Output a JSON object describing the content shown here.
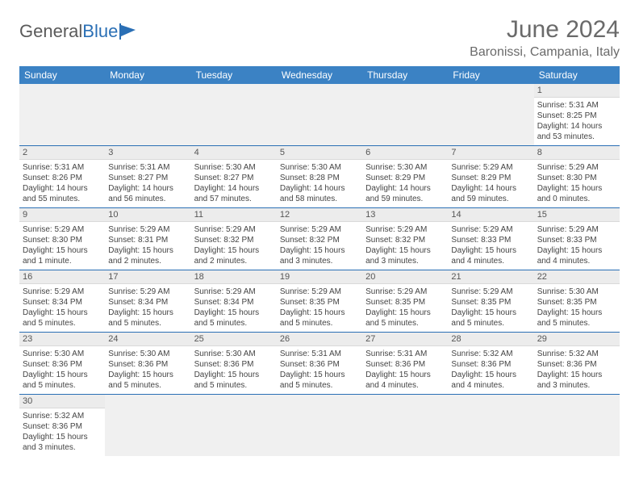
{
  "logo": {
    "text1": "General",
    "text2": "Blue"
  },
  "title": "June 2024",
  "location": "Baronissi, Campania, Italy",
  "colors": {
    "header_bg": "#3b82c4",
    "header_text": "#ffffff",
    "border": "#2a6fb5",
    "daynum_bg": "#ececec",
    "empty_bg": "#f0f0f0",
    "title_color": "#6a6a6a"
  },
  "weekdays": [
    "Sunday",
    "Monday",
    "Tuesday",
    "Wednesday",
    "Thursday",
    "Friday",
    "Saturday"
  ],
  "weeks": [
    [
      null,
      null,
      null,
      null,
      null,
      null,
      {
        "n": "1",
        "sr": "5:31 AM",
        "ss": "8:25 PM",
        "dl": "14 hours and 53 minutes."
      }
    ],
    [
      {
        "n": "2",
        "sr": "5:31 AM",
        "ss": "8:26 PM",
        "dl": "14 hours and 55 minutes."
      },
      {
        "n": "3",
        "sr": "5:31 AM",
        "ss": "8:27 PM",
        "dl": "14 hours and 56 minutes."
      },
      {
        "n": "4",
        "sr": "5:30 AM",
        "ss": "8:27 PM",
        "dl": "14 hours and 57 minutes."
      },
      {
        "n": "5",
        "sr": "5:30 AM",
        "ss": "8:28 PM",
        "dl": "14 hours and 58 minutes."
      },
      {
        "n": "6",
        "sr": "5:30 AM",
        "ss": "8:29 PM",
        "dl": "14 hours and 59 minutes."
      },
      {
        "n": "7",
        "sr": "5:29 AM",
        "ss": "8:29 PM",
        "dl": "14 hours and 59 minutes."
      },
      {
        "n": "8",
        "sr": "5:29 AM",
        "ss": "8:30 PM",
        "dl": "15 hours and 0 minutes."
      }
    ],
    [
      {
        "n": "9",
        "sr": "5:29 AM",
        "ss": "8:30 PM",
        "dl": "15 hours and 1 minute."
      },
      {
        "n": "10",
        "sr": "5:29 AM",
        "ss": "8:31 PM",
        "dl": "15 hours and 2 minutes."
      },
      {
        "n": "11",
        "sr": "5:29 AM",
        "ss": "8:32 PM",
        "dl": "15 hours and 2 minutes."
      },
      {
        "n": "12",
        "sr": "5:29 AM",
        "ss": "8:32 PM",
        "dl": "15 hours and 3 minutes."
      },
      {
        "n": "13",
        "sr": "5:29 AM",
        "ss": "8:32 PM",
        "dl": "15 hours and 3 minutes."
      },
      {
        "n": "14",
        "sr": "5:29 AM",
        "ss": "8:33 PM",
        "dl": "15 hours and 4 minutes."
      },
      {
        "n": "15",
        "sr": "5:29 AM",
        "ss": "8:33 PM",
        "dl": "15 hours and 4 minutes."
      }
    ],
    [
      {
        "n": "16",
        "sr": "5:29 AM",
        "ss": "8:34 PM",
        "dl": "15 hours and 5 minutes."
      },
      {
        "n": "17",
        "sr": "5:29 AM",
        "ss": "8:34 PM",
        "dl": "15 hours and 5 minutes."
      },
      {
        "n": "18",
        "sr": "5:29 AM",
        "ss": "8:34 PM",
        "dl": "15 hours and 5 minutes."
      },
      {
        "n": "19",
        "sr": "5:29 AM",
        "ss": "8:35 PM",
        "dl": "15 hours and 5 minutes."
      },
      {
        "n": "20",
        "sr": "5:29 AM",
        "ss": "8:35 PM",
        "dl": "15 hours and 5 minutes."
      },
      {
        "n": "21",
        "sr": "5:29 AM",
        "ss": "8:35 PM",
        "dl": "15 hours and 5 minutes."
      },
      {
        "n": "22",
        "sr": "5:30 AM",
        "ss": "8:35 PM",
        "dl": "15 hours and 5 minutes."
      }
    ],
    [
      {
        "n": "23",
        "sr": "5:30 AM",
        "ss": "8:36 PM",
        "dl": "15 hours and 5 minutes."
      },
      {
        "n": "24",
        "sr": "5:30 AM",
        "ss": "8:36 PM",
        "dl": "15 hours and 5 minutes."
      },
      {
        "n": "25",
        "sr": "5:30 AM",
        "ss": "8:36 PM",
        "dl": "15 hours and 5 minutes."
      },
      {
        "n": "26",
        "sr": "5:31 AM",
        "ss": "8:36 PM",
        "dl": "15 hours and 5 minutes."
      },
      {
        "n": "27",
        "sr": "5:31 AM",
        "ss": "8:36 PM",
        "dl": "15 hours and 4 minutes."
      },
      {
        "n": "28",
        "sr": "5:32 AM",
        "ss": "8:36 PM",
        "dl": "15 hours and 4 minutes."
      },
      {
        "n": "29",
        "sr": "5:32 AM",
        "ss": "8:36 PM",
        "dl": "15 hours and 3 minutes."
      }
    ],
    [
      {
        "n": "30",
        "sr": "5:32 AM",
        "ss": "8:36 PM",
        "dl": "15 hours and 3 minutes."
      },
      null,
      null,
      null,
      null,
      null,
      null
    ]
  ],
  "labels": {
    "sunrise": "Sunrise:",
    "sunset": "Sunset:",
    "daylight": "Daylight:"
  }
}
